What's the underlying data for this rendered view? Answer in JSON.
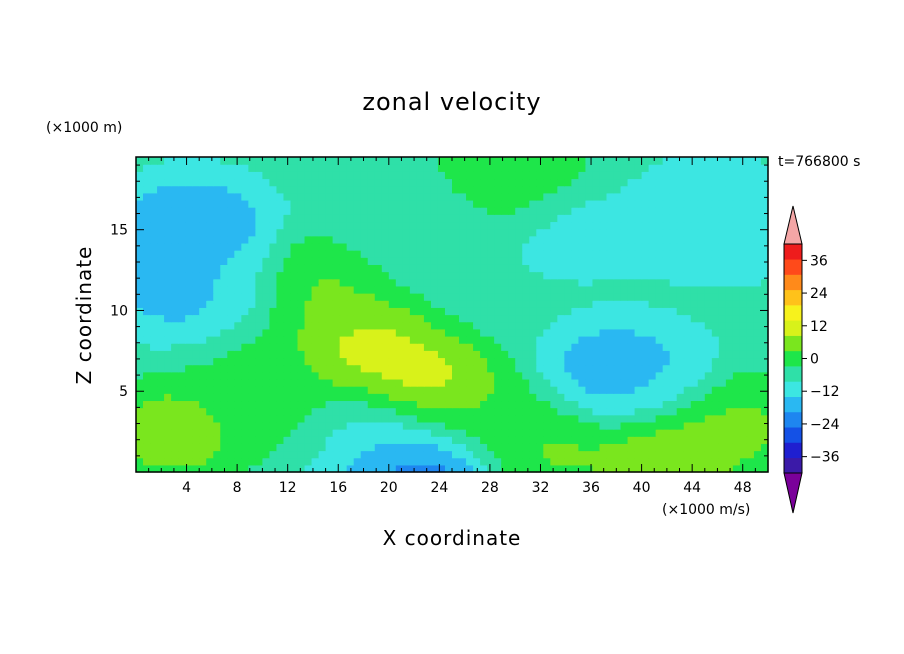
{
  "chart_data": {
    "type": "heatmap",
    "title": "zonal velocity",
    "xlabel": "X coordinate",
    "ylabel": "Z coordinate",
    "x_units": "(×1000 m/s)",
    "z_units": "(×1000 m)",
    "time_label": "t=766800 s",
    "xlim": [
      0,
      50
    ],
    "ylim": [
      0,
      19.5
    ],
    "x_ticks": [
      "4",
      "8",
      "12",
      "16",
      "20",
      "24",
      "28",
      "32",
      "36",
      "40",
      "44",
      "48"
    ],
    "y_ticks": [
      "5",
      "10",
      "15"
    ],
    "colorbar": {
      "tick_labels": [
        "36",
        "24",
        "12",
        "0",
        "−12",
        "−24",
        "−36"
      ],
      "levels": [
        -42,
        -36,
        -30,
        -24,
        -18,
        -12,
        -6,
        0,
        6,
        12,
        18,
        24,
        30,
        36,
        42
      ],
      "extend": "both",
      "colors": [
        "#7a009a",
        "#3b1aa8",
        "#1f1fd0",
        "#1451e6",
        "#1e86f0",
        "#2ab8f2",
        "#3ce6e2",
        "#2fe0a8",
        "#1ee64a",
        "#7ae61e",
        "#d8f21a",
        "#f7f21c",
        "#ffc21a",
        "#ff8a1a",
        "#ff4a1a",
        "#ee1c1c",
        "#f4a6a6"
      ]
    },
    "features": [
      {
        "x": 18,
        "z": 7.5,
        "value": 18
      },
      {
        "x": 23,
        "z": 5,
        "value": 21
      },
      {
        "x": 14.5,
        "z": 11.5,
        "value": 9
      },
      {
        "x": 3,
        "z": 2.5,
        "value": 12
      },
      {
        "x": 42,
        "z": 1.5,
        "value": 15
      },
      {
        "x": 33,
        "z": 1.5,
        "value": 9
      },
      {
        "x": 48,
        "z": 3,
        "value": 9
      },
      {
        "x": 22,
        "z": 0.5,
        "value": -30
      },
      {
        "x": 18,
        "z": 1.5,
        "value": -15
      },
      {
        "x": 19,
        "z": 2.5,
        "value": -6
      },
      {
        "x": 38.5,
        "z": 6,
        "value": -21
      },
      {
        "x": 40,
        "z": 5.5,
        "value": -9
      },
      {
        "x": 4,
        "z": 11.5,
        "value": -18
      },
      {
        "x": 4.5,
        "z": 15,
        "value": -21
      },
      {
        "x": 6,
        "z": 12,
        "value": -9
      },
      {
        "x": 46,
        "z": 15.5,
        "value": -15
      },
      {
        "x": 45,
        "z": 16,
        "value": -8
      },
      {
        "x": 35,
        "z": 15,
        "value": -9
      },
      {
        "x": 22,
        "z": 15,
        "value": -6
      },
      {
        "x": 30,
        "z": 18.5,
        "value": 8
      },
      {
        "x": 10,
        "z": 6,
        "value": 3
      },
      {
        "x": 27,
        "z": 3.5,
        "value": 4
      },
      {
        "x": 13,
        "z": 3,
        "value": 4
      }
    ]
  }
}
